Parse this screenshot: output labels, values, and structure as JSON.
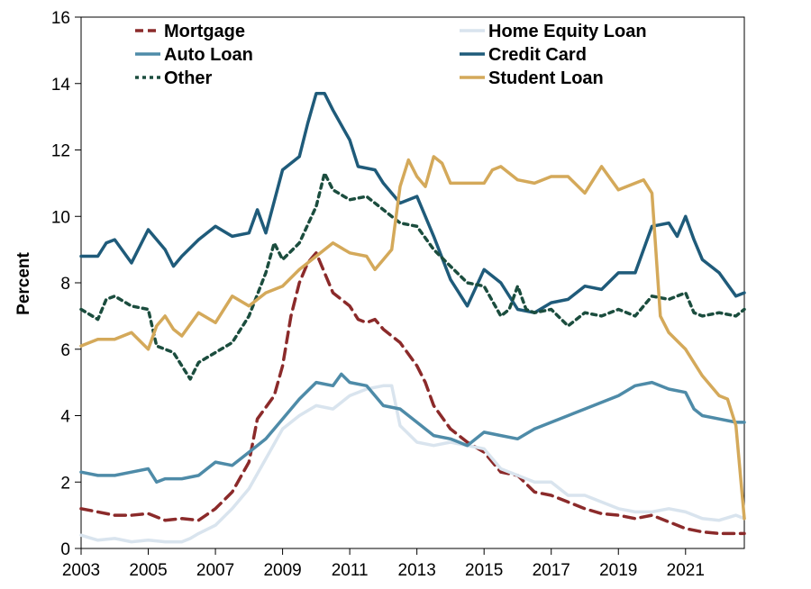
{
  "chart_data": {
    "type": "line",
    "title": "",
    "xlabel": "",
    "ylabel": "Percent",
    "xlim": [
      2003,
      2022.75
    ],
    "ylim": [
      0,
      16
    ],
    "x_ticks": [
      "2003",
      "2005",
      "2007",
      "2009",
      "2011",
      "2013",
      "2015",
      "2017",
      "2019",
      "2021"
    ],
    "x_tick_values": [
      2003,
      2005,
      2007,
      2009,
      2011,
      2013,
      2015,
      2017,
      2019,
      2021
    ],
    "y_ticks": [
      "0",
      "2",
      "4",
      "6",
      "8",
      "10",
      "12",
      "14",
      "16"
    ],
    "y_tick_values": [
      0,
      2,
      4,
      6,
      8,
      10,
      12,
      14,
      16
    ],
    "legend_position": "top",
    "grid": false,
    "series": [
      {
        "name": "Mortgage",
        "color": "#8b2a2a",
        "dash": "dashed",
        "points": [
          [
            2003,
            1.2
          ],
          [
            2003.5,
            1.1
          ],
          [
            2004,
            1.0
          ],
          [
            2004.5,
            1.0
          ],
          [
            2005,
            1.05
          ],
          [
            2005.5,
            0.85
          ],
          [
            2006,
            0.9
          ],
          [
            2006.5,
            0.85
          ],
          [
            2007,
            1.2
          ],
          [
            2007.5,
            1.7
          ],
          [
            2008,
            2.6
          ],
          [
            2008.25,
            3.9
          ],
          [
            2008.75,
            4.6
          ],
          [
            2009,
            5.5
          ],
          [
            2009.25,
            7.0
          ],
          [
            2009.5,
            8.0
          ],
          [
            2009.75,
            8.6
          ],
          [
            2010,
            8.9
          ],
          [
            2010.25,
            8.3
          ],
          [
            2010.5,
            7.7
          ],
          [
            2010.75,
            7.5
          ],
          [
            2011,
            7.3
          ],
          [
            2011.25,
            6.9
          ],
          [
            2011.5,
            6.8
          ],
          [
            2011.75,
            6.9
          ],
          [
            2012,
            6.6
          ],
          [
            2012.5,
            6.2
          ],
          [
            2013,
            5.5
          ],
          [
            2013.25,
            5.0
          ],
          [
            2013.5,
            4.3
          ],
          [
            2014,
            3.6
          ],
          [
            2014.5,
            3.2
          ],
          [
            2015,
            2.9
          ],
          [
            2015.5,
            2.3
          ],
          [
            2016,
            2.2
          ],
          [
            2016.5,
            1.7
          ],
          [
            2017,
            1.6
          ],
          [
            2017.5,
            1.4
          ],
          [
            2018,
            1.2
          ],
          [
            2018.5,
            1.05
          ],
          [
            2019,
            1.0
          ],
          [
            2019.5,
            0.9
          ],
          [
            2020,
            1.0
          ],
          [
            2020.5,
            0.8
          ],
          [
            2021,
            0.6
          ],
          [
            2021.5,
            0.5
          ],
          [
            2022,
            0.45
          ],
          [
            2022.5,
            0.45
          ],
          [
            2022.75,
            0.45
          ]
        ]
      },
      {
        "name": "Home Equity Loan",
        "color": "#d9e4ee",
        "dash": "solid",
        "points": [
          [
            2003,
            0.4
          ],
          [
            2003.5,
            0.25
          ],
          [
            2004,
            0.3
          ],
          [
            2004.5,
            0.2
          ],
          [
            2005,
            0.25
          ],
          [
            2005.5,
            0.2
          ],
          [
            2006,
            0.2
          ],
          [
            2006.25,
            0.3
          ],
          [
            2006.5,
            0.45
          ],
          [
            2007,
            0.7
          ],
          [
            2007.5,
            1.2
          ],
          [
            2008,
            1.8
          ],
          [
            2008.5,
            2.7
          ],
          [
            2009,
            3.6
          ],
          [
            2009.5,
            4.0
          ],
          [
            2010,
            4.3
          ],
          [
            2010.5,
            4.2
          ],
          [
            2011,
            4.6
          ],
          [
            2011.5,
            4.8
          ],
          [
            2012,
            4.9
          ],
          [
            2012.25,
            4.9
          ],
          [
            2012.5,
            3.7
          ],
          [
            2013,
            3.2
          ],
          [
            2013.5,
            3.1
          ],
          [
            2014,
            3.2
          ],
          [
            2014.5,
            3.1
          ],
          [
            2015,
            3.0
          ],
          [
            2015.5,
            2.4
          ],
          [
            2016,
            2.2
          ],
          [
            2016.5,
            2.0
          ],
          [
            2017,
            2.0
          ],
          [
            2017.5,
            1.6
          ],
          [
            2018,
            1.6
          ],
          [
            2018.5,
            1.4
          ],
          [
            2019,
            1.2
          ],
          [
            2019.5,
            1.1
          ],
          [
            2020,
            1.1
          ],
          [
            2020.5,
            1.2
          ],
          [
            2021,
            1.1
          ],
          [
            2021.5,
            0.9
          ],
          [
            2022,
            0.85
          ],
          [
            2022.5,
            1.0
          ],
          [
            2022.75,
            0.9
          ]
        ]
      },
      {
        "name": "Auto Loan",
        "color": "#4e8ba8",
        "dash": "solid",
        "points": [
          [
            2003,
            2.3
          ],
          [
            2003.5,
            2.2
          ],
          [
            2004,
            2.2
          ],
          [
            2004.5,
            2.3
          ],
          [
            2005,
            2.4
          ],
          [
            2005.25,
            2.0
          ],
          [
            2005.5,
            2.1
          ],
          [
            2006,
            2.1
          ],
          [
            2006.5,
            2.2
          ],
          [
            2007,
            2.6
          ],
          [
            2007.5,
            2.5
          ],
          [
            2008,
            2.9
          ],
          [
            2008.5,
            3.3
          ],
          [
            2009,
            3.9
          ],
          [
            2009.5,
            4.5
          ],
          [
            2010,
            5.0
          ],
          [
            2010.5,
            4.9
          ],
          [
            2010.75,
            5.25
          ],
          [
            2011,
            5.0
          ],
          [
            2011.5,
            4.9
          ],
          [
            2012,
            4.3
          ],
          [
            2012.5,
            4.2
          ],
          [
            2013,
            3.8
          ],
          [
            2013.5,
            3.4
          ],
          [
            2014,
            3.3
          ],
          [
            2014.5,
            3.1
          ],
          [
            2015,
            3.5
          ],
          [
            2015.5,
            3.4
          ],
          [
            2016,
            3.3
          ],
          [
            2016.5,
            3.6
          ],
          [
            2017,
            3.8
          ],
          [
            2017.5,
            4.0
          ],
          [
            2018,
            4.2
          ],
          [
            2018.5,
            4.4
          ],
          [
            2019,
            4.6
          ],
          [
            2019.5,
            4.9
          ],
          [
            2020,
            5.0
          ],
          [
            2020.5,
            4.8
          ],
          [
            2021,
            4.7
          ],
          [
            2021.25,
            4.2
          ],
          [
            2021.5,
            4.0
          ],
          [
            2022,
            3.9
          ],
          [
            2022.5,
            3.8
          ],
          [
            2022.75,
            3.8
          ]
        ]
      },
      {
        "name": "Credit Card",
        "color": "#1f5b7a",
        "dash": "solid",
        "points": [
          [
            2003,
            8.8
          ],
          [
            2003.5,
            8.8
          ],
          [
            2003.75,
            9.2
          ],
          [
            2004,
            9.3
          ],
          [
            2004.5,
            8.6
          ],
          [
            2005,
            9.6
          ],
          [
            2005.5,
            9.0
          ],
          [
            2005.75,
            8.5
          ],
          [
            2006,
            8.8
          ],
          [
            2006.5,
            9.3
          ],
          [
            2007,
            9.7
          ],
          [
            2007.5,
            9.4
          ],
          [
            2008,
            9.5
          ],
          [
            2008.25,
            10.2
          ],
          [
            2008.5,
            9.5
          ],
          [
            2009,
            11.4
          ],
          [
            2009.5,
            11.8
          ],
          [
            2009.75,
            12.8
          ],
          [
            2010,
            13.7
          ],
          [
            2010.25,
            13.7
          ],
          [
            2010.5,
            13.2
          ],
          [
            2011,
            12.3
          ],
          [
            2011.25,
            11.5
          ],
          [
            2011.75,
            11.4
          ],
          [
            2012,
            11.0
          ],
          [
            2012.5,
            10.4
          ],
          [
            2013,
            10.6
          ],
          [
            2013.5,
            9.4
          ],
          [
            2014,
            8.1
          ],
          [
            2014.5,
            7.3
          ],
          [
            2015,
            8.4
          ],
          [
            2015.5,
            8.0
          ],
          [
            2016,
            7.2
          ],
          [
            2016.5,
            7.1
          ],
          [
            2017,
            7.4
          ],
          [
            2017.5,
            7.5
          ],
          [
            2018,
            7.9
          ],
          [
            2018.5,
            7.8
          ],
          [
            2019,
            8.3
          ],
          [
            2019.5,
            8.3
          ],
          [
            2020,
            9.7
          ],
          [
            2020.5,
            9.8
          ],
          [
            2020.75,
            9.4
          ],
          [
            2021,
            10.0
          ],
          [
            2021.25,
            9.3
          ],
          [
            2021.5,
            8.7
          ],
          [
            2022,
            8.3
          ],
          [
            2022.5,
            7.6
          ],
          [
            2022.75,
            7.7
          ]
        ]
      },
      {
        "name": "Other",
        "color": "#1b4d3e",
        "dash": "dotted",
        "points": [
          [
            2003,
            7.2
          ],
          [
            2003.5,
            6.9
          ],
          [
            2003.75,
            7.5
          ],
          [
            2004,
            7.6
          ],
          [
            2004.5,
            7.3
          ],
          [
            2005,
            7.2
          ],
          [
            2005.25,
            6.1
          ],
          [
            2005.75,
            5.9
          ],
          [
            2006,
            5.5
          ],
          [
            2006.25,
            5.1
          ],
          [
            2006.5,
            5.6
          ],
          [
            2007,
            5.9
          ],
          [
            2007.5,
            6.2
          ],
          [
            2008,
            7.0
          ],
          [
            2008.5,
            8.3
          ],
          [
            2008.75,
            9.2
          ],
          [
            2009,
            8.7
          ],
          [
            2009.5,
            9.2
          ],
          [
            2010,
            10.3
          ],
          [
            2010.25,
            11.3
          ],
          [
            2010.5,
            10.8
          ],
          [
            2011,
            10.5
          ],
          [
            2011.5,
            10.6
          ],
          [
            2012,
            10.2
          ],
          [
            2012.5,
            9.8
          ],
          [
            2013,
            9.7
          ],
          [
            2013.5,
            9.0
          ],
          [
            2014,
            8.5
          ],
          [
            2014.5,
            8.0
          ],
          [
            2015,
            7.9
          ],
          [
            2015.5,
            7.0
          ],
          [
            2015.75,
            7.2
          ],
          [
            2016,
            7.9
          ],
          [
            2016.25,
            7.2
          ],
          [
            2016.5,
            7.1
          ],
          [
            2017,
            7.2
          ],
          [
            2017.5,
            6.7
          ],
          [
            2018,
            7.1
          ],
          [
            2018.5,
            7.0
          ],
          [
            2019,
            7.2
          ],
          [
            2019.5,
            7.0
          ],
          [
            2020,
            7.6
          ],
          [
            2020.5,
            7.5
          ],
          [
            2021,
            7.7
          ],
          [
            2021.25,
            7.1
          ],
          [
            2021.5,
            7.0
          ],
          [
            2022,
            7.1
          ],
          [
            2022.5,
            7.0
          ],
          [
            2022.75,
            7.2
          ]
        ]
      },
      {
        "name": "Student Loan",
        "color": "#d4a95a",
        "dash": "solid",
        "points": [
          [
            2003,
            6.1
          ],
          [
            2003.5,
            6.3
          ],
          [
            2004,
            6.3
          ],
          [
            2004.5,
            6.5
          ],
          [
            2005,
            6.0
          ],
          [
            2005.25,
            6.7
          ],
          [
            2005.5,
            7.0
          ],
          [
            2005.75,
            6.6
          ],
          [
            2006,
            6.4
          ],
          [
            2006.5,
            7.1
          ],
          [
            2007,
            6.8
          ],
          [
            2007.5,
            7.6
          ],
          [
            2008,
            7.3
          ],
          [
            2008.5,
            7.7
          ],
          [
            2009,
            7.9
          ],
          [
            2009.5,
            8.4
          ],
          [
            2010,
            8.8
          ],
          [
            2010.5,
            9.2
          ],
          [
            2011,
            8.9
          ],
          [
            2011.5,
            8.8
          ],
          [
            2011.75,
            8.4
          ],
          [
            2012,
            8.7
          ],
          [
            2012.25,
            9.0
          ],
          [
            2012.5,
            10.9
          ],
          [
            2012.75,
            11.7
          ],
          [
            2013,
            11.2
          ],
          [
            2013.25,
            10.9
          ],
          [
            2013.5,
            11.8
          ],
          [
            2013.75,
            11.6
          ],
          [
            2014,
            11.0
          ],
          [
            2014.5,
            11.0
          ],
          [
            2015,
            11.0
          ],
          [
            2015.25,
            11.4
          ],
          [
            2015.5,
            11.5
          ],
          [
            2016,
            11.1
          ],
          [
            2016.5,
            11.0
          ],
          [
            2017,
            11.2
          ],
          [
            2017.5,
            11.2
          ],
          [
            2018,
            10.7
          ],
          [
            2018.5,
            11.5
          ],
          [
            2019,
            10.8
          ],
          [
            2019.5,
            11.0
          ],
          [
            2019.75,
            11.1
          ],
          [
            2020,
            10.7
          ],
          [
            2020.25,
            7.0
          ],
          [
            2020.5,
            6.5
          ],
          [
            2021,
            6.0
          ],
          [
            2021.5,
            5.2
          ],
          [
            2022,
            4.6
          ],
          [
            2022.25,
            4.5
          ],
          [
            2022.5,
            3.7
          ],
          [
            2022.75,
            0.9
          ]
        ]
      }
    ]
  }
}
